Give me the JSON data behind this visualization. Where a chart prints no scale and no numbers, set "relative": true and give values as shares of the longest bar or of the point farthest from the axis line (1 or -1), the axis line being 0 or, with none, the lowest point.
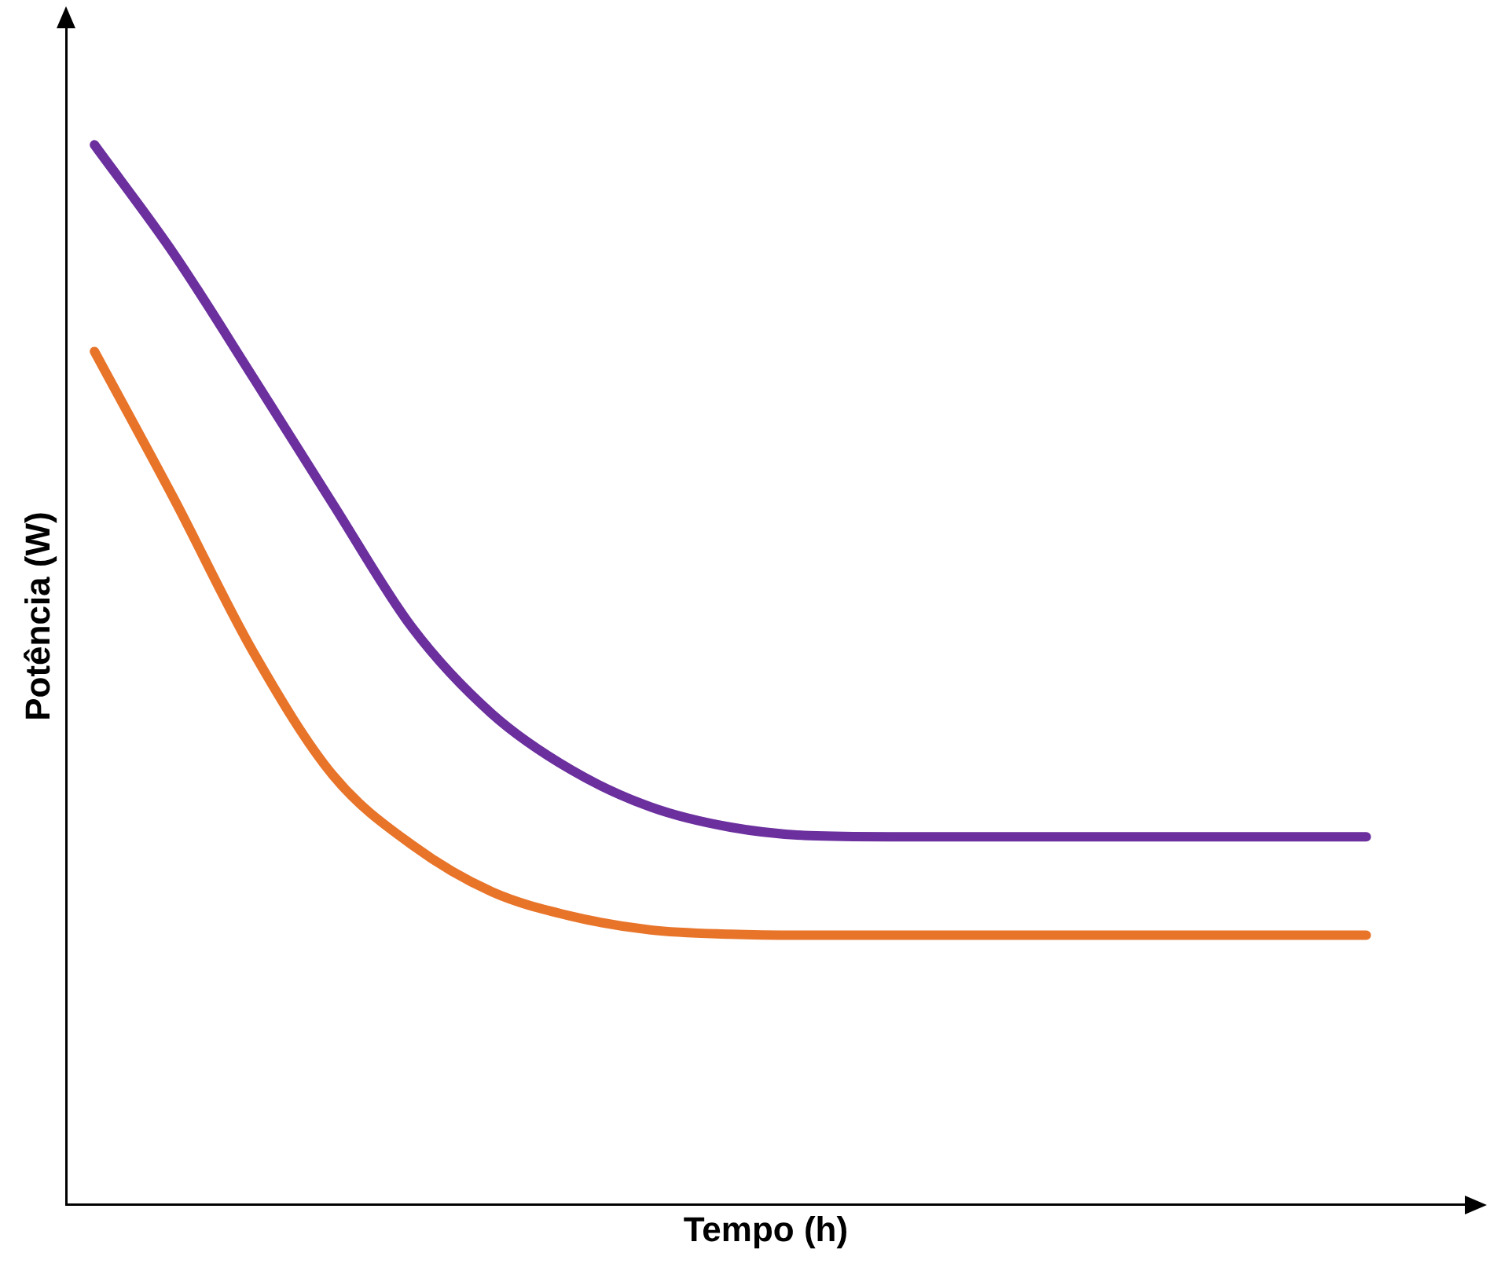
{
  "chart_data": {
    "type": "line",
    "relative": true,
    "xlabel": "Tempo (h)",
    "ylabel": "Potência (W)",
    "grid": false,
    "legend": false,
    "marker": "none",
    "line_style": "solid",
    "categories": [
      null,
      null,
      null,
      null,
      null,
      null,
      null,
      null,
      null,
      null,
      null,
      null,
      null,
      null,
      null,
      null,
      null
    ],
    "series": [
      {
        "color": "#6b2f9e",
        "values": [
          1.0,
          0.897,
          0.78,
          0.661,
          0.544,
          0.463,
          0.41,
          0.375,
          0.356,
          0.348,
          0.347,
          0.347,
          0.347,
          0.347,
          0.347,
          0.347,
          0.347
        ]
      },
      {
        "color": "#e8742a",
        "values": [
          0.805,
          0.666,
          0.521,
          0.405,
          0.339,
          0.295,
          0.272,
          0.259,
          0.255,
          0.254,
          0.254,
          0.254,
          0.254,
          0.254,
          0.254,
          0.254,
          0.254
        ]
      }
    ]
  }
}
